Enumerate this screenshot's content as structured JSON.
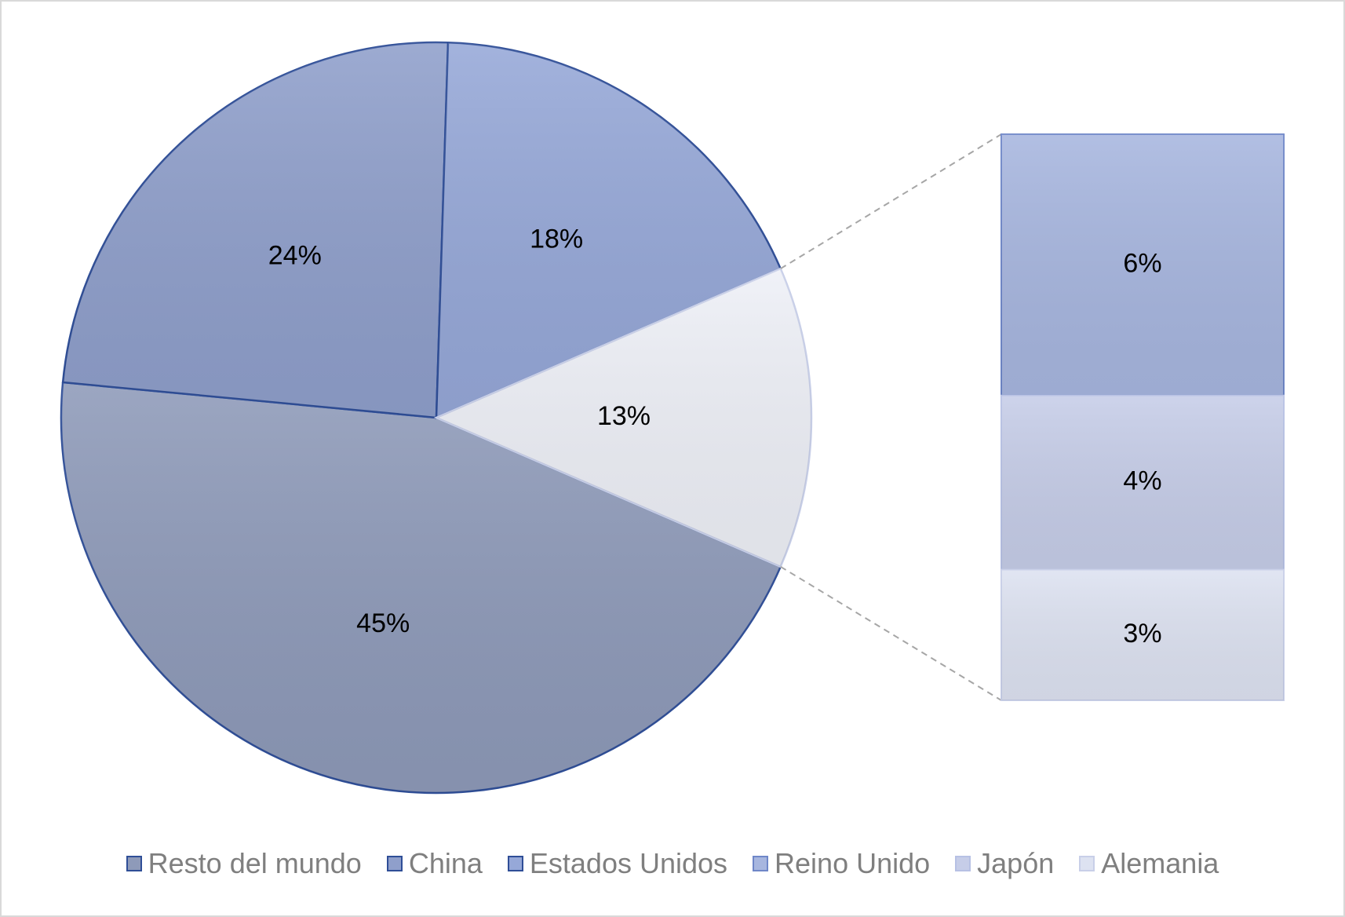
{
  "chart_data": {
    "type": "bar-of-pie",
    "series": [
      {
        "name": "Resto del mundo",
        "value": 45,
        "label": "45%",
        "color": "#8e9ab9",
        "border": "#2f4e97",
        "group": "pie"
      },
      {
        "name": "China",
        "value": 24,
        "label": "24%",
        "color": "#8f9fcb",
        "border": "#2f4e97",
        "group": "pie"
      },
      {
        "name": "Estados Unidos",
        "value": 18,
        "label": "18%",
        "color": "#96a8d8",
        "border": "#2f4e97",
        "group": "pie"
      },
      {
        "name": "Reino Unido",
        "value": 6,
        "label": "6%",
        "color": "#a7b6df",
        "border": "#6f87c8",
        "group": "bar"
      },
      {
        "name": "Japón",
        "value": 4,
        "label": "4%",
        "color": "#c6cde8",
        "border": "#b7c1e4",
        "group": "bar"
      },
      {
        "name": "Alemania",
        "value": 3,
        "label": "3%",
        "color": "#dde2f1",
        "border": "#c8cfe8",
        "group": "bar"
      }
    ],
    "other": {
      "value": 13,
      "label": "13%",
      "color": "#eef0f7",
      "border": "#c8cfe8"
    },
    "legend_position": "bottom"
  }
}
